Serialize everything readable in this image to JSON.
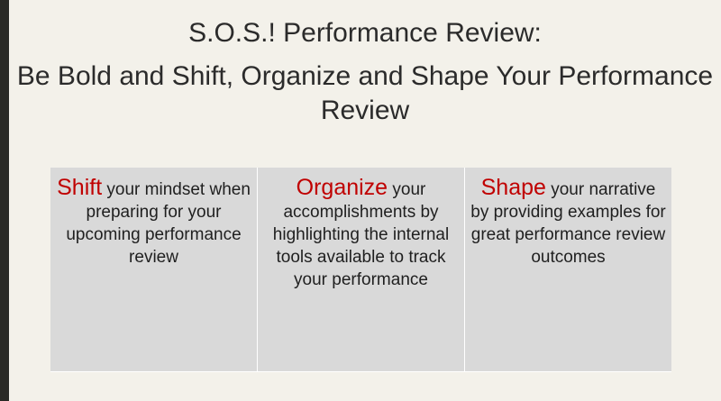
{
  "title": {
    "line1": "S.O.S.! Performance Review:",
    "line2": "Be Bold and Shift, Organize and Shape Your Performance Review"
  },
  "columns": [
    {
      "keyword": "Shift",
      "text": "your mindset when preparing for your upcoming performance review"
    },
    {
      "keyword": "Organize",
      "text": "your accomplishments by highlighting the internal  tools available to track your performance"
    },
    {
      "keyword": "Shape",
      "text": "your narrative by providing examples for great performance review outcomes"
    }
  ],
  "colors": {
    "keyword": "#c00000",
    "background": "#f3f1ea",
    "table": "#d9d9d9"
  }
}
